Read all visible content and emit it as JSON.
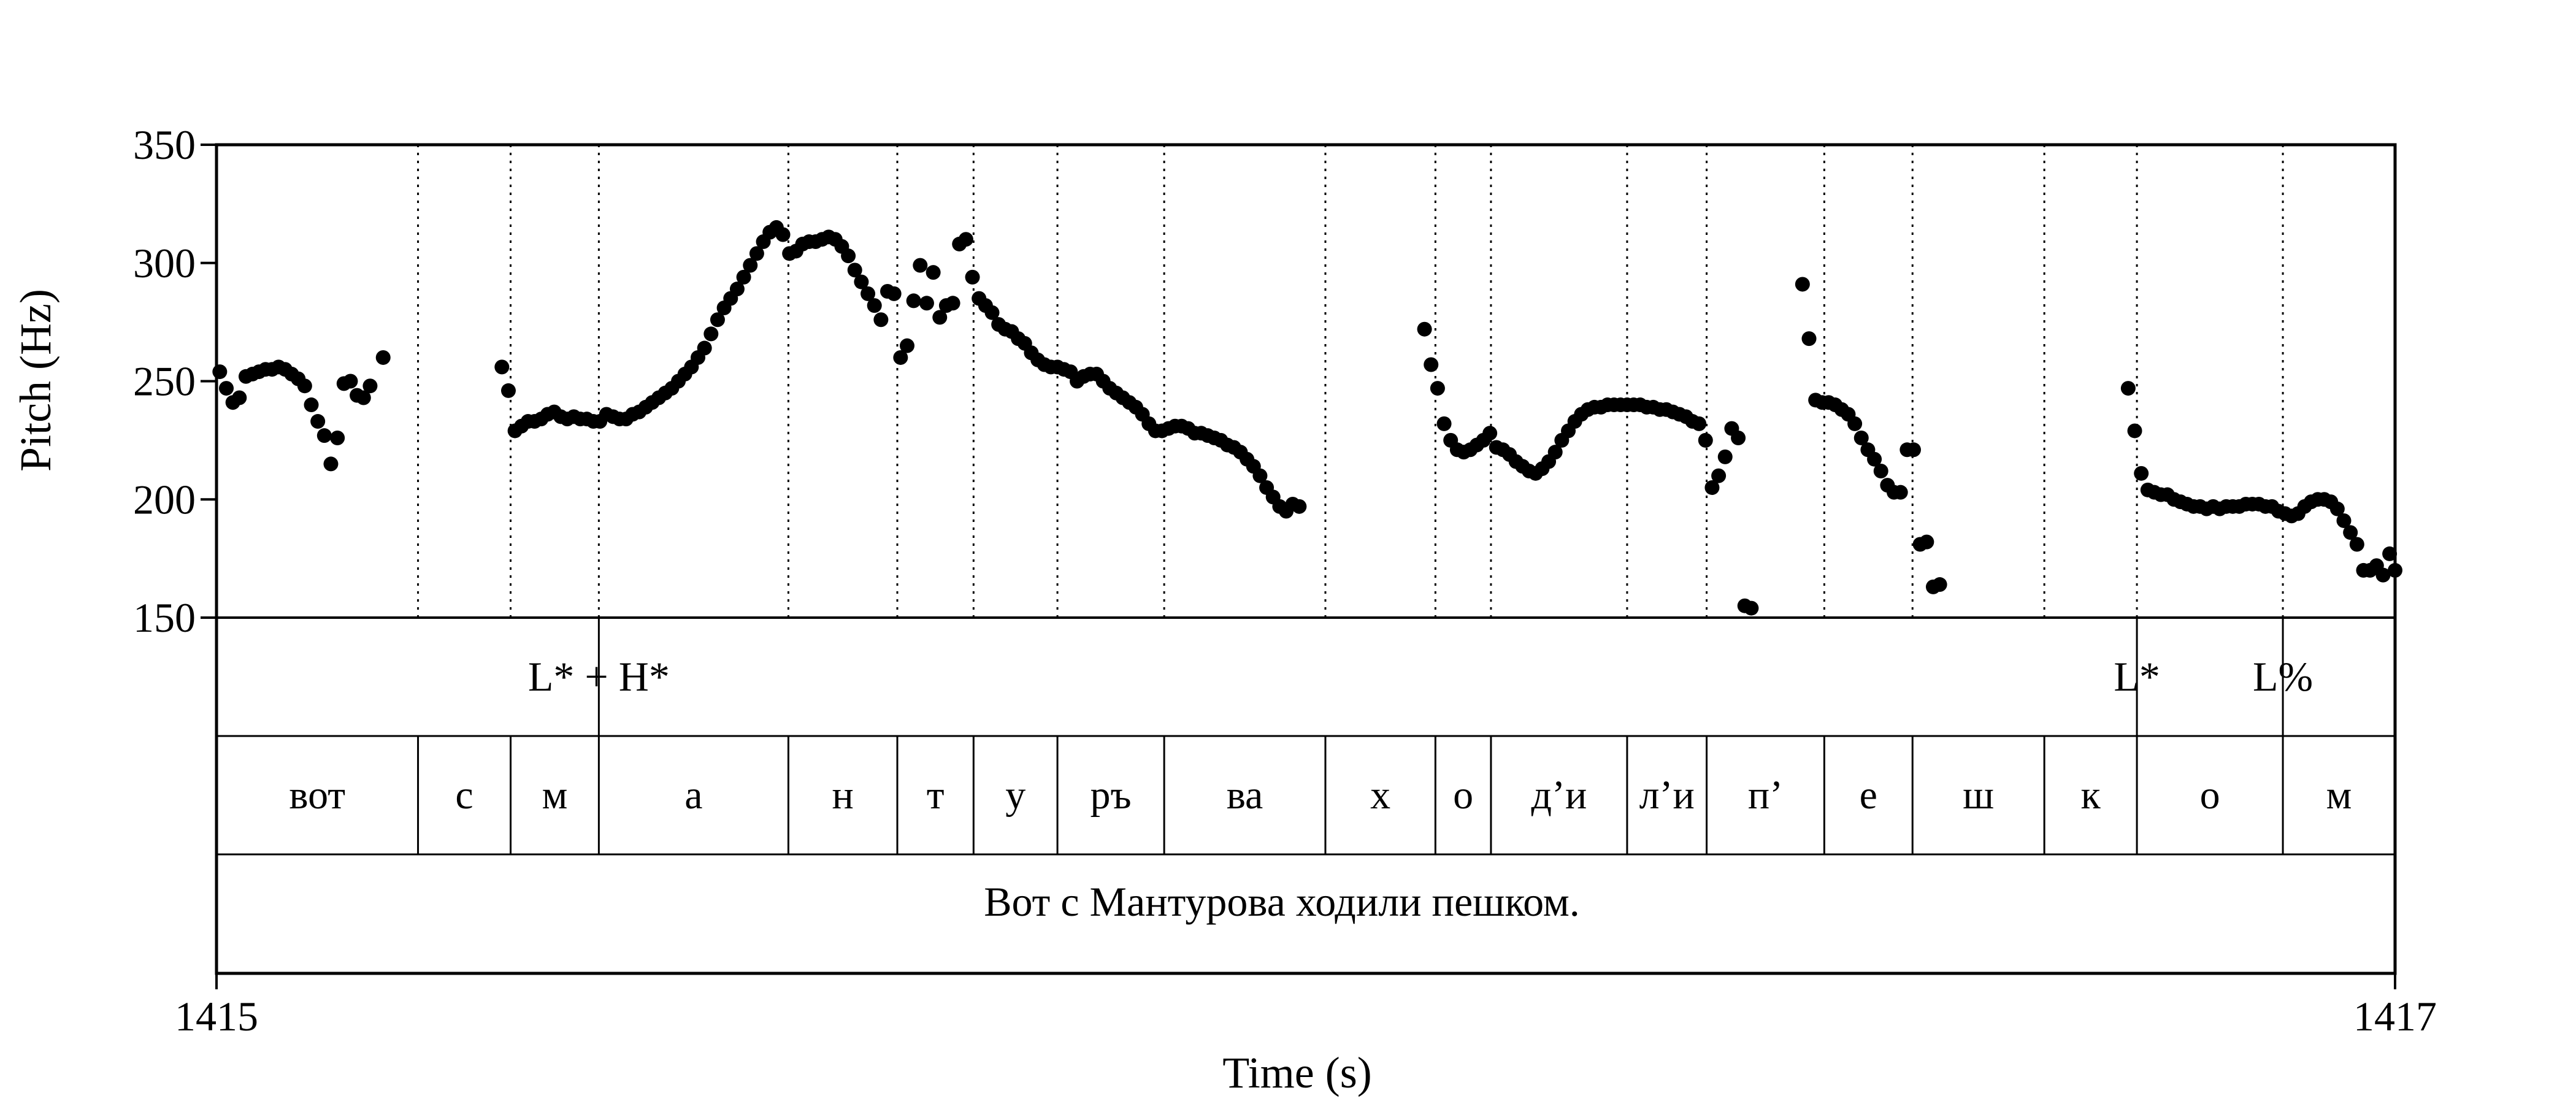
{
  "chart_data": {
    "type": "scatter",
    "title": "",
    "xlabel": "Time (s)",
    "ylabel": "Pitch (Hz)",
    "xlim": [
      1415,
      1417
    ],
    "ylim": [
      150,
      350
    ],
    "yticks": [
      "150",
      "200",
      "250",
      "300",
      "350"
    ],
    "xticks": [
      "1415",
      "1417"
    ],
    "grid": false,
    "tier_tones": [
      {
        "t": 1415.351,
        "label": "L* + H*"
      },
      {
        "t": 1416.763,
        "label": "L*"
      },
      {
        "t": 1416.897,
        "label": "L%"
      }
    ],
    "tier_segments": [
      {
        "start": 1415.0,
        "end": 1415.185,
        "label": "вот"
      },
      {
        "start": 1415.185,
        "end": 1415.27,
        "label": "с"
      },
      {
        "start": 1415.27,
        "end": 1415.351,
        "label": "м"
      },
      {
        "start": 1415.351,
        "end": 1415.525,
        "label": "а"
      },
      {
        "start": 1415.525,
        "end": 1415.625,
        "label": "н"
      },
      {
        "start": 1415.625,
        "end": 1415.695,
        "label": "т"
      },
      {
        "start": 1415.695,
        "end": 1415.772,
        "label": "у"
      },
      {
        "start": 1415.772,
        "end": 1415.87,
        "label": "ръ"
      },
      {
        "start": 1415.87,
        "end": 1416.018,
        "label": "ва"
      },
      {
        "start": 1416.018,
        "end": 1416.119,
        "label": "х"
      },
      {
        "start": 1416.119,
        "end": 1416.17,
        "label": "о"
      },
      {
        "start": 1416.17,
        "end": 1416.295,
        "label": "д’и"
      },
      {
        "start": 1416.295,
        "end": 1416.368,
        "label": "л’и"
      },
      {
        "start": 1416.368,
        "end": 1416.476,
        "label": "п’"
      },
      {
        "start": 1416.476,
        "end": 1416.557,
        "label": "е"
      },
      {
        "start": 1416.557,
        "end": 1416.678,
        "label": "ш"
      },
      {
        "start": 1416.678,
        "end": 1416.763,
        "label": "к"
      },
      {
        "start": 1416.763,
        "end": 1416.897,
        "label": "о"
      },
      {
        "start": 1416.897,
        "end": 1417.0,
        "label": "м"
      }
    ],
    "tier_sentence": "Вот с Мантурова ходили пешком.",
    "series": [
      {
        "points": [
          [
            1415.003,
            254
          ],
          [
            1415.009,
            247
          ],
          [
            1415.015,
            241
          ],
          [
            1415.021,
            243
          ],
          [
            1415.027,
            252
          ],
          [
            1415.033,
            253
          ],
          [
            1415.039,
            254
          ],
          [
            1415.045,
            255
          ],
          [
            1415.051,
            255
          ],
          [
            1415.057,
            256
          ],
          [
            1415.063,
            255
          ],
          [
            1415.069,
            253
          ],
          [
            1415.075,
            251
          ],
          [
            1415.081,
            248
          ],
          [
            1415.087,
            240
          ],
          [
            1415.093,
            233
          ],
          [
            1415.099,
            227
          ],
          [
            1415.105,
            215
          ],
          [
            1415.111,
            226
          ],
          [
            1415.117,
            249
          ],
          [
            1415.123,
            250
          ],
          [
            1415.129,
            244
          ],
          [
            1415.135,
            243
          ],
          [
            1415.141,
            248
          ],
          [
            1415.153,
            260
          ],
          [
            1415.262,
            256
          ],
          [
            1415.268,
            246
          ],
          [
            1415.274,
            229
          ],
          [
            1415.28,
            231
          ],
          [
            1415.286,
            233
          ],
          [
            1415.292,
            233
          ],
          [
            1415.298,
            234
          ],
          [
            1415.304,
            236
          ],
          [
            1415.31,
            237
          ],
          [
            1415.316,
            235
          ],
          [
            1415.322,
            234
          ],
          [
            1415.328,
            235
          ],
          [
            1415.334,
            234
          ],
          [
            1415.34,
            234
          ],
          [
            1415.346,
            233
          ],
          [
            1415.352,
            233
          ],
          [
            1415.358,
            236
          ],
          [
            1415.364,
            235
          ],
          [
            1415.37,
            234
          ],
          [
            1415.376,
            234
          ],
          [
            1415.382,
            236
          ],
          [
            1415.388,
            237
          ],
          [
            1415.394,
            239
          ],
          [
            1415.4,
            241
          ],
          [
            1415.406,
            243
          ],
          [
            1415.412,
            245
          ],
          [
            1415.418,
            247
          ],
          [
            1415.424,
            250
          ],
          [
            1415.43,
            253
          ],
          [
            1415.436,
            256
          ],
          [
            1415.442,
            260
          ],
          [
            1415.448,
            264
          ],
          [
            1415.454,
            270
          ],
          [
            1415.46,
            276
          ],
          [
            1415.466,
            281
          ],
          [
            1415.472,
            285
          ],
          [
            1415.478,
            289
          ],
          [
            1415.484,
            294
          ],
          [
            1415.49,
            299
          ],
          [
            1415.496,
            304
          ],
          [
            1415.502,
            309
          ],
          [
            1415.508,
            313
          ],
          [
            1415.514,
            315
          ],
          [
            1415.52,
            312
          ],
          [
            1415.526,
            304
          ],
          [
            1415.532,
            305
          ],
          [
            1415.538,
            308
          ],
          [
            1415.544,
            309
          ],
          [
            1415.55,
            309
          ],
          [
            1415.556,
            310
          ],
          [
            1415.562,
            311
          ],
          [
            1415.568,
            310
          ],
          [
            1415.574,
            307
          ],
          [
            1415.58,
            303
          ],
          [
            1415.586,
            297
          ],
          [
            1415.592,
            292
          ],
          [
            1415.598,
            287
          ],
          [
            1415.604,
            282
          ],
          [
            1415.61,
            276
          ],
          [
            1415.616,
            288
          ],
          [
            1415.622,
            287
          ],
          [
            1415.628,
            260
          ],
          [
            1415.634,
            265
          ],
          [
            1415.64,
            284
          ],
          [
            1415.646,
            299
          ],
          [
            1415.652,
            283
          ],
          [
            1415.658,
            296
          ],
          [
            1415.664,
            277
          ],
          [
            1415.67,
            282
          ],
          [
            1415.676,
            283
          ],
          [
            1415.682,
            308
          ],
          [
            1415.688,
            310
          ],
          [
            1415.694,
            294
          ],
          [
            1415.7,
            285
          ],
          [
            1415.706,
            282
          ],
          [
            1415.712,
            279
          ],
          [
            1415.718,
            274
          ],
          [
            1415.724,
            272
          ],
          [
            1415.73,
            271
          ],
          [
            1415.736,
            268
          ],
          [
            1415.742,
            266
          ],
          [
            1415.748,
            262
          ],
          [
            1415.754,
            259
          ],
          [
            1415.76,
            257
          ],
          [
            1415.766,
            256
          ],
          [
            1415.772,
            256
          ],
          [
            1415.778,
            255
          ],
          [
            1415.784,
            254
          ],
          [
            1415.79,
            250
          ],
          [
            1415.796,
            252
          ],
          [
            1415.802,
            253
          ],
          [
            1415.808,
            253
          ],
          [
            1415.814,
            250
          ],
          [
            1415.82,
            247
          ],
          [
            1415.826,
            245
          ],
          [
            1415.832,
            243
          ],
          [
            1415.838,
            241
          ],
          [
            1415.844,
            239
          ],
          [
            1415.85,
            236
          ],
          [
            1415.856,
            232
          ],
          [
            1415.862,
            229
          ],
          [
            1415.868,
            229
          ],
          [
            1415.874,
            230
          ],
          [
            1415.88,
            231
          ],
          [
            1415.886,
            231
          ],
          [
            1415.892,
            230
          ],
          [
            1415.898,
            228
          ],
          [
            1415.904,
            228
          ],
          [
            1415.91,
            227
          ],
          [
            1415.916,
            226
          ],
          [
            1415.922,
            225
          ],
          [
            1415.928,
            223
          ],
          [
            1415.934,
            222
          ],
          [
            1415.94,
            220
          ],
          [
            1415.946,
            217
          ],
          [
            1415.952,
            214
          ],
          [
            1415.958,
            210
          ],
          [
            1415.964,
            205
          ],
          [
            1415.97,
            201
          ],
          [
            1415.976,
            197
          ],
          [
            1415.982,
            195
          ],
          [
            1415.988,
            198
          ],
          [
            1415.994,
            197
          ],
          [
            1416.109,
            272
          ],
          [
            1416.115,
            257
          ],
          [
            1416.121,
            247
          ],
          [
            1416.127,
            232
          ],
          [
            1416.133,
            225
          ],
          [
            1416.139,
            221
          ],
          [
            1416.145,
            220
          ],
          [
            1416.151,
            221
          ],
          [
            1416.157,
            223
          ],
          [
            1416.163,
            225
          ],
          [
            1416.169,
            228
          ],
          [
            1416.175,
            222
          ],
          [
            1416.181,
            221
          ],
          [
            1416.187,
            219
          ],
          [
            1416.193,
            216
          ],
          [
            1416.199,
            214
          ],
          [
            1416.205,
            212
          ],
          [
            1416.211,
            211
          ],
          [
            1416.217,
            213
          ],
          [
            1416.223,
            216
          ],
          [
            1416.229,
            220
          ],
          [
            1416.235,
            225
          ],
          [
            1416.241,
            229
          ],
          [
            1416.247,
            233
          ],
          [
            1416.253,
            236
          ],
          [
            1416.259,
            238
          ],
          [
            1416.265,
            239
          ],
          [
            1416.271,
            239
          ],
          [
            1416.277,
            240
          ],
          [
            1416.283,
            240
          ],
          [
            1416.289,
            240
          ],
          [
            1416.295,
            240
          ],
          [
            1416.301,
            240
          ],
          [
            1416.307,
            240
          ],
          [
            1416.313,
            239
          ],
          [
            1416.319,
            239
          ],
          [
            1416.325,
            238
          ],
          [
            1416.331,
            238
          ],
          [
            1416.337,
            237
          ],
          [
            1416.343,
            236
          ],
          [
            1416.349,
            235
          ],
          [
            1416.355,
            233
          ],
          [
            1416.361,
            232
          ],
          [
            1416.367,
            225
          ],
          [
            1416.373,
            205
          ],
          [
            1416.379,
            210
          ],
          [
            1416.385,
            218
          ],
          [
            1416.391,
            230
          ],
          [
            1416.397,
            226
          ],
          [
            1416.403,
            155
          ],
          [
            1416.409,
            154
          ],
          [
            1416.456,
            291
          ],
          [
            1416.462,
            268
          ],
          [
            1416.468,
            242
          ],
          [
            1416.474,
            241
          ],
          [
            1416.48,
            241
          ],
          [
            1416.486,
            240
          ],
          [
            1416.492,
            238
          ],
          [
            1416.498,
            236
          ],
          [
            1416.504,
            232
          ],
          [
            1416.51,
            226
          ],
          [
            1416.516,
            221
          ],
          [
            1416.522,
            217
          ],
          [
            1416.528,
            212
          ],
          [
            1416.534,
            206
          ],
          [
            1416.54,
            203
          ],
          [
            1416.546,
            203
          ],
          [
            1416.552,
            221
          ],
          [
            1416.558,
            221
          ],
          [
            1416.564,
            181
          ],
          [
            1416.57,
            182
          ],
          [
            1416.576,
            163
          ],
          [
            1416.582,
            164
          ],
          [
            1416.755,
            247
          ],
          [
            1416.761,
            229
          ],
          [
            1416.767,
            211
          ],
          [
            1416.773,
            204
          ],
          [
            1416.779,
            203
          ],
          [
            1416.785,
            202
          ],
          [
            1416.791,
            202
          ],
          [
            1416.797,
            200
          ],
          [
            1416.803,
            199
          ],
          [
            1416.809,
            198
          ],
          [
            1416.815,
            197
          ],
          [
            1416.821,
            197
          ],
          [
            1416.827,
            196
          ],
          [
            1416.833,
            197
          ],
          [
            1416.839,
            196
          ],
          [
            1416.845,
            197
          ],
          [
            1416.851,
            197
          ],
          [
            1416.857,
            197
          ],
          [
            1416.863,
            198
          ],
          [
            1416.869,
            198
          ],
          [
            1416.875,
            198
          ],
          [
            1416.881,
            197
          ],
          [
            1416.887,
            197
          ],
          [
            1416.893,
            195
          ],
          [
            1416.899,
            194
          ],
          [
            1416.905,
            193
          ],
          [
            1416.911,
            194
          ],
          [
            1416.917,
            197
          ],
          [
            1416.923,
            199
          ],
          [
            1416.929,
            200
          ],
          [
            1416.935,
            200
          ],
          [
            1416.941,
            199
          ],
          [
            1416.947,
            196
          ],
          [
            1416.953,
            191
          ],
          [
            1416.959,
            186
          ],
          [
            1416.965,
            181
          ],
          [
            1416.971,
            170
          ],
          [
            1416.977,
            170
          ],
          [
            1416.983,
            172
          ],
          [
            1416.989,
            168
          ],
          [
            1416.995,
            177
          ],
          [
            1417.0,
            170
          ]
        ]
      }
    ]
  }
}
